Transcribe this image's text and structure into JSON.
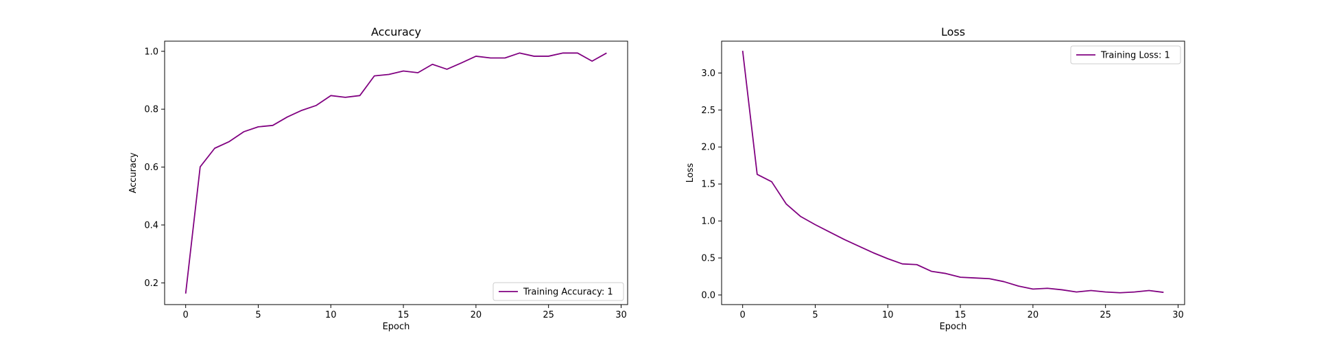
{
  "chart_data": [
    {
      "type": "line",
      "title": "Accuracy",
      "xlabel": "Epoch",
      "ylabel": "Accuracy",
      "xlim": [
        -1.45,
        30.45
      ],
      "ylim": [
        0.125,
        1.035
      ],
      "xticks": [
        0,
        5,
        10,
        15,
        20,
        25,
        30
      ],
      "xtick_labels": [
        "0",
        "5",
        "10",
        "15",
        "20",
        "25",
        "30"
      ],
      "yticks": [
        0.2,
        0.4,
        0.6,
        0.8,
        1.0
      ],
      "ytick_labels": [
        "0.2",
        "0.4",
        "0.6",
        "0.8",
        "1.0"
      ],
      "grid": false,
      "legend_position": "bottom-right",
      "series": [
        {
          "name": "Training Accuracy: 1",
          "color": "#800080",
          "x": [
            0,
            1,
            2,
            3,
            4,
            5,
            6,
            7,
            8,
            9,
            10,
            11,
            12,
            13,
            14,
            15,
            16,
            17,
            18,
            19,
            20,
            21,
            22,
            23,
            24,
            25,
            26,
            27,
            28,
            29
          ],
          "values": [
            0.163,
            0.601,
            0.665,
            0.688,
            0.722,
            0.739,
            0.744,
            0.773,
            0.796,
            0.813,
            0.847,
            0.841,
            0.847,
            0.915,
            0.92,
            0.932,
            0.926,
            0.955,
            0.938,
            0.96,
            0.983,
            0.977,
            0.977,
            0.994,
            0.983,
            0.983,
            0.994,
            0.994,
            0.966,
            0.994
          ]
        }
      ]
    },
    {
      "type": "line",
      "title": "Loss",
      "xlabel": "Epoch",
      "ylabel": "Loss",
      "xlim": [
        -1.45,
        30.45
      ],
      "ylim": [
        -0.13,
        3.43
      ],
      "xticks": [
        0,
        5,
        10,
        15,
        20,
        25,
        30
      ],
      "xtick_labels": [
        "0",
        "5",
        "10",
        "15",
        "20",
        "25",
        "30"
      ],
      "yticks": [
        0.0,
        0.5,
        1.0,
        1.5,
        2.0,
        2.5,
        3.0
      ],
      "ytick_labels": [
        "0.0",
        "0.5",
        "1.0",
        "1.5",
        "2.0",
        "2.5",
        "3.0"
      ],
      "grid": false,
      "legend_position": "top-right",
      "series": [
        {
          "name": "Training Loss: 1",
          "color": "#800080",
          "x": [
            0,
            1,
            2,
            3,
            4,
            5,
            6,
            7,
            8,
            9,
            10,
            11,
            12,
            13,
            14,
            15,
            16,
            17,
            18,
            19,
            20,
            21,
            22,
            23,
            24,
            25,
            26,
            27,
            28,
            29
          ],
          "values": [
            3.3,
            1.63,
            1.53,
            1.23,
            1.06,
            0.95,
            0.85,
            0.75,
            0.66,
            0.57,
            0.49,
            0.42,
            0.41,
            0.32,
            0.29,
            0.24,
            0.23,
            0.22,
            0.18,
            0.12,
            0.08,
            0.09,
            0.07,
            0.04,
            0.06,
            0.04,
            0.03,
            0.04,
            0.06,
            0.035
          ]
        }
      ]
    }
  ]
}
